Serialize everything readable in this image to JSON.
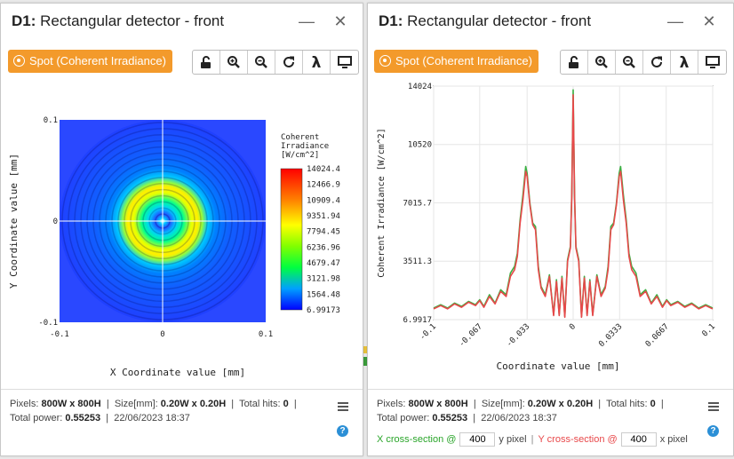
{
  "win1": {
    "title_prefix": "D1:",
    "title": "Rectangular detector - front",
    "spot_label": "Spot (Coherent Irradiance)",
    "plot": {
      "ylabel": "Y Coordinate value [mm]",
      "xlabel": "X Coordinate value [mm]",
      "x_ticks": [
        "-0.1",
        "0",
        "0.1"
      ],
      "y_ticks": [
        "0.1",
        "0",
        "-0.1"
      ],
      "colorbar_title": [
        "Coherent",
        "Irradiance",
        "[W/cm^2]"
      ],
      "colorbar_ticks": [
        "14024.4",
        "12466.9",
        "10909.4",
        "9351.94",
        "7794.45",
        "6236.96",
        "4679.47",
        "3121.98",
        "1564.48",
        "6.99173"
      ]
    },
    "info_line1": {
      "pixels_label": "Pixels:",
      "pixels": "800W x 800H",
      "size_label": "Size[mm]:",
      "size": "0.20W x 0.20H",
      "hits_label": "Total hits:",
      "hits": "0"
    },
    "info_line2": {
      "power_label": "Total power:",
      "power": "0.55253",
      "date": "22/06/2023 18:37"
    }
  },
  "win2": {
    "title_prefix": "D1:",
    "title": "Rectangular detector - front",
    "spot_label": "Spot (Coherent Irradiance)",
    "info_line1": {
      "pixels_label": "Pixels:",
      "pixels": "800W x 800H",
      "size_label": "Size[mm]:",
      "size": "0.20W x 0.20H",
      "hits_label": "Total hits:",
      "hits": "0"
    },
    "info_line2": {
      "power_label": "Total power:",
      "power": "0.55253",
      "date": "22/06/2023 18:37"
    },
    "cross": {
      "x_label": "X cross-section @",
      "x_value": "400",
      "x_unit": "y pixel",
      "y_label": "Y cross-section @",
      "y_value": "400",
      "y_unit": "x pixel"
    }
  },
  "icons": [
    "unlock-icon",
    "zoom-in-icon",
    "zoom-out-icon",
    "refresh-icon",
    "lambda-icon",
    "monitor-icon"
  ],
  "colors": {
    "accent": "#f39a2b",
    "green": "#3cb043",
    "red": "#e8484a",
    "help": "#2b8fd6"
  },
  "chart_data": {
    "type": "line",
    "xlabel": "Coordinate value [mm]",
    "ylabel": "Coherent Irradiance [W/cm^2]",
    "xlim": [
      -0.1,
      0.1
    ],
    "ylim": [
      6.9917,
      14024
    ],
    "x_ticks": [
      "-0.1",
      "-0.067",
      "-0.033",
      "0",
      "0.0333",
      "0.0667",
      "0.1"
    ],
    "y_ticks": [
      "14024",
      "10520",
      "7015.7",
      "3511.3",
      "6.9917"
    ],
    "grid": true,
    "series": [
      {
        "color": "#3cb043",
        "x": [
          -0.1,
          -0.095,
          -0.09,
          -0.085,
          -0.08,
          -0.075,
          -0.07,
          -0.067,
          -0.064,
          -0.06,
          -0.056,
          -0.052,
          -0.048,
          -0.045,
          -0.042,
          -0.04,
          -0.038,
          -0.036,
          -0.034,
          -0.033,
          -0.031,
          -0.029,
          -0.027,
          -0.025,
          -0.023,
          -0.02,
          -0.017,
          -0.014,
          -0.012,
          -0.01,
          -0.008,
          -0.006,
          -0.004,
          -0.002,
          -0.001,
          0,
          0.001,
          0.002,
          0.004,
          0.006,
          0.008,
          0.01,
          0.012,
          0.014,
          0.017,
          0.02,
          0.023,
          0.025,
          0.027,
          0.029,
          0.031,
          0.033,
          0.034,
          0.036,
          0.038,
          0.04,
          0.042,
          0.045,
          0.048,
          0.052,
          0.056,
          0.06,
          0.064,
          0.067,
          0.07,
          0.075,
          0.08,
          0.085,
          0.09,
          0.095,
          0.1
        ],
        "y": [
          700,
          900,
          700,
          1000,
          800,
          1100,
          900,
          1200,
          800,
          1500,
          1000,
          1800,
          1500,
          2800,
          3200,
          4000,
          6000,
          7500,
          9200,
          8800,
          7000,
          5800,
          5600,
          3200,
          2000,
          1500,
          2700,
          300,
          2400,
          300,
          2600,
          200,
          3600,
          4400,
          7500,
          13800,
          7500,
          4400,
          3600,
          200,
          2600,
          300,
          2400,
          300,
          2700,
          1500,
          2000,
          3200,
          5600,
          5800,
          7000,
          8800,
          9200,
          7500,
          6000,
          4000,
          3200,
          2800,
          1500,
          1800,
          1000,
          1500,
          800,
          1200,
          900,
          1100,
          800,
          1000,
          700,
          900,
          700
        ]
      },
      {
        "color": "#e8484a",
        "x": [
          -0.1,
          -0.095,
          -0.09,
          -0.085,
          -0.08,
          -0.075,
          -0.07,
          -0.067,
          -0.064,
          -0.06,
          -0.056,
          -0.052,
          -0.048,
          -0.045,
          -0.042,
          -0.04,
          -0.038,
          -0.036,
          -0.034,
          -0.033,
          -0.031,
          -0.029,
          -0.027,
          -0.025,
          -0.023,
          -0.02,
          -0.017,
          -0.014,
          -0.012,
          -0.01,
          -0.008,
          -0.006,
          -0.004,
          -0.002,
          -0.001,
          0,
          0.001,
          0.002,
          0.004,
          0.006,
          0.008,
          0.01,
          0.012,
          0.014,
          0.017,
          0.02,
          0.023,
          0.025,
          0.027,
          0.029,
          0.031,
          0.033,
          0.034,
          0.036,
          0.038,
          0.04,
          0.042,
          0.045,
          0.048,
          0.052,
          0.056,
          0.06,
          0.064,
          0.067,
          0.07,
          0.075,
          0.08,
          0.085,
          0.09,
          0.095,
          0.1
        ],
        "y": [
          650,
          850,
          650,
          950,
          750,
          1050,
          850,
          1150,
          750,
          1400,
          950,
          1700,
          1400,
          2600,
          3000,
          3800,
          5800,
          7200,
          8900,
          8600,
          6900,
          5700,
          5400,
          3000,
          1900,
          1400,
          2600,
          250,
          2300,
          250,
          2500,
          150,
          3500,
          4300,
          7300,
          13500,
          7300,
          4300,
          3500,
          150,
          2500,
          250,
          2300,
          250,
          2600,
          1400,
          1900,
          3000,
          5400,
          5700,
          6900,
          8600,
          8900,
          7200,
          5800,
          3800,
          3000,
          2600,
          1400,
          1700,
          950,
          1400,
          750,
          1150,
          850,
          1050,
          750,
          950,
          650,
          850,
          650
        ]
      }
    ]
  }
}
